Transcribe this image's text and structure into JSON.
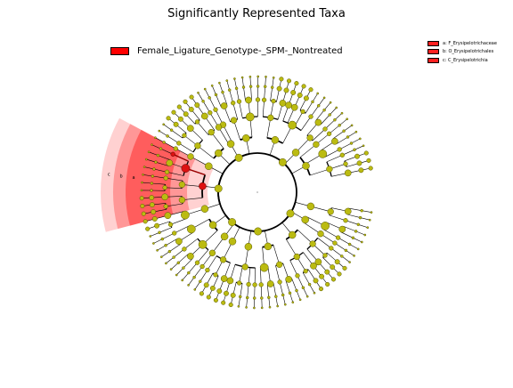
{
  "chart_data": {
    "type": "cladogram",
    "title": "Significantly Represented Taxa",
    "group_legend": [
      {
        "label": "Female_Ligature_Genotype-_SPM-_Nontreated",
        "color": "#ff0000"
      }
    ],
    "taxa_legend": [
      {
        "label": "a: F_Erysipelotrichaceae"
      },
      {
        "label": "b: O_Erysipelotrichales"
      },
      {
        "label": "c: C_Erysipelotrichia"
      }
    ],
    "highlighted_clade_letters": [
      "a",
      "b",
      "c"
    ],
    "colors": {
      "node_default": "#bbbb11",
      "node_highlighted": "#dd1111",
      "highlight": "#ff0000"
    }
  }
}
